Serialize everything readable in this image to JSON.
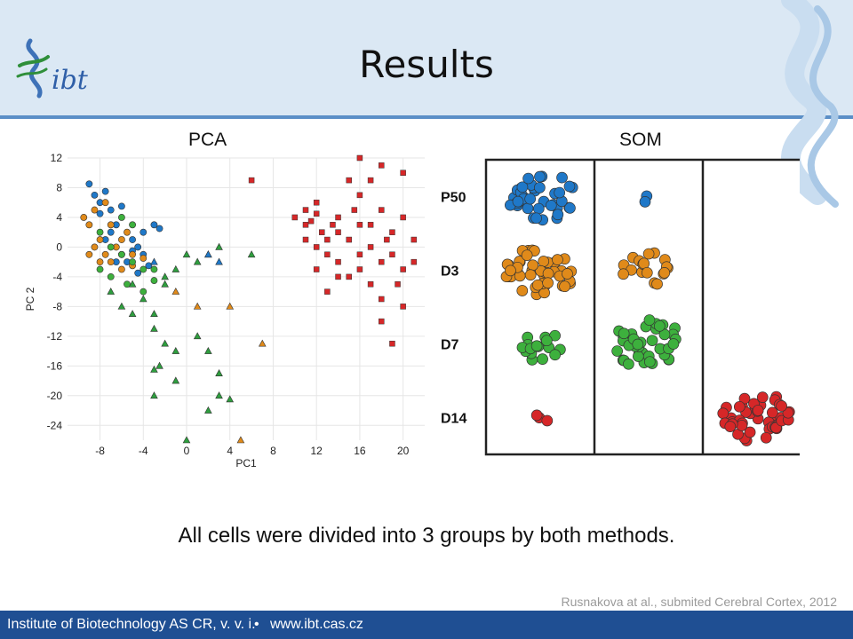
{
  "slide": {
    "title": "Results",
    "logo_text": "ibt",
    "caption": "All cells were divided into 3 groups by both methods.",
    "citation": "Rusnakova at al., submited Cerebral Cortex, 2012",
    "footer": {
      "institute": "Institute of Biotechnology AS CR, v. v. i.",
      "bullet": "•",
      "website": "www.ibt.cas.cz"
    },
    "accent_color": "#1f4f93",
    "header_color": "#dbe8f4"
  },
  "chart_data": [
    {
      "type": "scatter",
      "title": "PCA",
      "xlabel": "PC1",
      "ylabel": "PC 2",
      "xlim": [
        -11,
        22
      ],
      "ylim": [
        -26,
        12
      ],
      "xticks": [
        -8,
        -4,
        0,
        4,
        8,
        12,
        16,
        20
      ],
      "yticks": [
        12,
        8,
        4,
        0,
        -4,
        -8,
        -12,
        -16,
        -20,
        -24
      ],
      "grid": true,
      "series": [
        {
          "color": "#1f78c8",
          "marker": "circle",
          "points": [
            [
              -9,
              8.5
            ],
            [
              -8.5,
              7
            ],
            [
              -8,
              6
            ],
            [
              -7.5,
              7.5
            ],
            [
              -7,
              5
            ],
            [
              -8,
              4.5
            ],
            [
              -6.5,
              3
            ],
            [
              -6,
              5.5
            ],
            [
              -5,
              1
            ],
            [
              -4.5,
              0
            ],
            [
              -4,
              -1
            ],
            [
              -3.5,
              -2.5
            ],
            [
              -5.5,
              -2
            ],
            [
              -6,
              -1
            ],
            [
              -7,
              2
            ],
            [
              -4,
              2
            ],
            [
              -3,
              3
            ],
            [
              -2.5,
              2.5
            ],
            [
              -4.5,
              -3.5
            ],
            [
              -6.5,
              -2
            ],
            [
              -5,
              -0.5
            ],
            [
              -7.5,
              1
            ]
          ]
        },
        {
          "color": "#e08a1a",
          "marker": "circle",
          "points": [
            [
              -9.5,
              4
            ],
            [
              -9,
              3
            ],
            [
              -8.5,
              5
            ],
            [
              -8,
              1
            ],
            [
              -7.5,
              -1
            ],
            [
              -7,
              -2
            ],
            [
              -6.5,
              0
            ],
            [
              -6,
              -3
            ],
            [
              -5.5,
              2
            ],
            [
              -5,
              -1
            ],
            [
              -9,
              -1
            ],
            [
              -8,
              -2
            ],
            [
              -7,
              3
            ],
            [
              -6,
              1
            ],
            [
              -5,
              -2.5
            ],
            [
              -4,
              -1.5
            ],
            [
              -8.5,
              0
            ],
            [
              -7.5,
              6
            ]
          ]
        },
        {
          "color": "#3db03d",
          "marker": "circle",
          "points": [
            [
              -8,
              2
            ],
            [
              -7,
              0
            ],
            [
              -6,
              -1
            ],
            [
              -5,
              -2
            ],
            [
              -4,
              -3
            ],
            [
              -6,
              4
            ],
            [
              -5,
              3
            ],
            [
              -7,
              -4
            ],
            [
              -8,
              -3
            ],
            [
              -5.5,
              -5
            ],
            [
              -3,
              -4.5
            ],
            [
              -4,
              -6
            ],
            [
              -3,
              -3
            ]
          ]
        },
        {
          "color": "#2e9e3e",
          "marker": "triangle",
          "points": [
            [
              -5,
              -5
            ],
            [
              -4,
              -7
            ],
            [
              -3,
              -9
            ],
            [
              -2,
              -4
            ],
            [
              -1,
              -3
            ],
            [
              0,
              -1
            ],
            [
              1,
              -2
            ],
            [
              2,
              -1
            ],
            [
              3,
              0
            ],
            [
              -3,
              -11
            ],
            [
              -2,
              -13
            ],
            [
              -2.5,
              -16
            ],
            [
              -3,
              -16.5
            ],
            [
              -1,
              -14
            ],
            [
              -1,
              -18
            ],
            [
              1,
              -12
            ],
            [
              2,
              -14
            ],
            [
              3,
              -17
            ],
            [
              3,
              -20
            ],
            [
              4,
              -20.5
            ],
            [
              0,
              -26
            ],
            [
              2,
              -22
            ],
            [
              -3,
              -20
            ],
            [
              6,
              -1
            ],
            [
              -6,
              -8
            ],
            [
              -7,
              -6
            ],
            [
              -5,
              -9
            ],
            [
              -2,
              -5
            ]
          ]
        },
        {
          "color": "#e08a1a",
          "marker": "triangle",
          "points": [
            [
              -1,
              -6
            ],
            [
              1,
              -8
            ],
            [
              4,
              -8
            ],
            [
              7,
              -13
            ],
            [
              5,
              -26
            ]
          ]
        },
        {
          "color": "#1f78c8",
          "marker": "triangle",
          "points": [
            [
              -3,
              -2
            ],
            [
              2,
              -1
            ],
            [
              3,
              -2
            ]
          ]
        },
        {
          "color": "#d62728",
          "marker": "square",
          "points": [
            [
              6,
              9
            ],
            [
              10,
              4
            ],
            [
              11,
              3
            ],
            [
              11,
              5
            ],
            [
              11.5,
              3.5
            ],
            [
              12,
              4.5
            ],
            [
              12.5,
              2
            ],
            [
              12,
              0
            ],
            [
              12,
              -3
            ],
            [
              13,
              1
            ],
            [
              13,
              -1
            ],
            [
              14,
              2
            ],
            [
              14,
              -2
            ],
            [
              14,
              4
            ],
            [
              15,
              1
            ],
            [
              15,
              -4
            ],
            [
              15.5,
              5
            ],
            [
              16,
              3
            ],
            [
              16,
              -1
            ],
            [
              16,
              -3
            ],
            [
              17,
              0
            ],
            [
              17,
              -5
            ],
            [
              17,
              9
            ],
            [
              18,
              5
            ],
            [
              18,
              -2
            ],
            [
              18,
              -7
            ],
            [
              18,
              -10
            ],
            [
              19,
              2
            ],
            [
              19,
              -1
            ],
            [
              19,
              -13
            ],
            [
              20,
              4
            ],
            [
              20,
              -3
            ],
            [
              20,
              -8
            ],
            [
              21,
              1
            ],
            [
              16,
              12
            ],
            [
              18,
              11
            ],
            [
              15,
              9
            ],
            [
              20,
              10
            ],
            [
              14,
              -4
            ],
            [
              13,
              -6
            ],
            [
              12,
              6
            ],
            [
              16,
              7
            ],
            [
              17,
              3
            ],
            [
              18.5,
              1
            ],
            [
              21,
              -2
            ],
            [
              11,
              1
            ],
            [
              13.5,
              3
            ],
            [
              19.5,
              -5
            ]
          ]
        }
      ]
    },
    {
      "type": "scatter",
      "title": "SOM",
      "row_labels": [
        "P50",
        "D3",
        "D7",
        "D14"
      ],
      "columns": 3,
      "cells": [
        {
          "row": 0,
          "col": 0,
          "color": "#1f78c8",
          "count": 40
        },
        {
          "row": 0,
          "col": 1,
          "color": "#1f78c8",
          "count": 2
        },
        {
          "row": 1,
          "col": 0,
          "color": "#e08a1a",
          "count": 45
        },
        {
          "row": 1,
          "col": 1,
          "color": "#e08a1a",
          "count": 18
        },
        {
          "row": 2,
          "col": 0,
          "color": "#3db03d",
          "count": 16
        },
        {
          "row": 2,
          "col": 1,
          "color": "#3db03d",
          "count": 42
        },
        {
          "row": 3,
          "col": 0,
          "color": "#d62728",
          "count": 3
        },
        {
          "row": 3,
          "col": 2,
          "color": "#d62728",
          "count": 48
        }
      ]
    }
  ]
}
